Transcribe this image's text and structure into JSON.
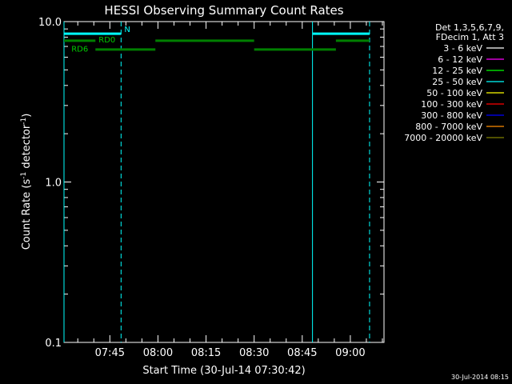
{
  "chart_data": {
    "type": "line",
    "title": "HESSI Observing Summary Count Rates",
    "xlabel": "Start Time (30-Jul-14 07:30:42)",
    "ylabel_main": "Count Rate (s",
    "ylabel_sup1": "-1",
    "ylabel_mid": " detector",
    "ylabel_sup2": "-1",
    "ylabel_end": ")",
    "yscale": "log",
    "ylim": [
      0.1,
      10.0
    ],
    "xlim_minutes": [
      450.7,
      550.5
    ],
    "x_ticks": [
      {
        "label": "07:45",
        "minutes": 465
      },
      {
        "label": "08:00",
        "minutes": 480
      },
      {
        "label": "08:15",
        "minutes": 495
      },
      {
        "label": "08:30",
        "minutes": 510
      },
      {
        "label": "08:45",
        "minutes": 525
      },
      {
        "label": "09:00",
        "minutes": 540
      }
    ],
    "x_minor_step": 5,
    "y_ticks": [
      {
        "label": "0.1",
        "value": 0.1
      },
      {
        "label": "1.0",
        "value": 1.0
      },
      {
        "label": "10.0",
        "value": 10.0
      }
    ],
    "legend_header": [
      "Det 1,3,5,6,7,9,",
      "FDecim 1, Att 3"
    ],
    "legend": [
      {
        "label": "3 - 6 keV",
        "color": "#ffffff"
      },
      {
        "label": "6 - 12 keV",
        "color": "#ff00ff"
      },
      {
        "label": "12 - 25 keV",
        "color": "#00ff00"
      },
      {
        "label": "25 - 50 keV",
        "color": "#00ffff"
      },
      {
        "label": "50 - 100 keV",
        "color": "#ffff00"
      },
      {
        "label": "100 - 300 keV",
        "color": "#ff0000"
      },
      {
        "label": "300 - 800 keV",
        "color": "#0000ff"
      },
      {
        "label": "800 - 7000 keV",
        "color": "#ff8c00"
      },
      {
        "label": "7000 - 20000 keV",
        "color": "#808000"
      }
    ],
    "bars_cyan": {
      "color": "#00ffff",
      "value": 8.4,
      "segments": [
        [
          450.7,
          468.5
        ],
        [
          528.2,
          546.0
        ]
      ]
    },
    "bars_green": {
      "color": "#007f00",
      "segments": [
        {
          "x": [
            450.7,
            460.5
          ],
          "value": 7.6
        },
        {
          "x": [
            460.5,
            479.2
          ],
          "value": 6.7
        },
        {
          "x": [
            479.2,
            510.0
          ],
          "value": 7.6
        },
        {
          "x": [
            510.0,
            535.5
          ],
          "value": 6.7
        },
        {
          "x": [
            535.5,
            546.0
          ],
          "value": 7.6
        }
      ]
    },
    "vlines_solid": [
      450.7,
      528.2
    ],
    "vlines_dashed": [
      468.5,
      546.0
    ],
    "annotations": [
      {
        "text": "N",
        "x": 469.5,
        "value": 8.6,
        "color": "#00ffff"
      },
      {
        "text": "RD0",
        "x": 461.5,
        "value": 7.4,
        "color": "#00cc00"
      },
      {
        "text": "RD6",
        "x": 453.0,
        "value": 6.5,
        "color": "#00cc00"
      }
    ],
    "footer_timestamp": "30-Jul-2014 08:15"
  }
}
